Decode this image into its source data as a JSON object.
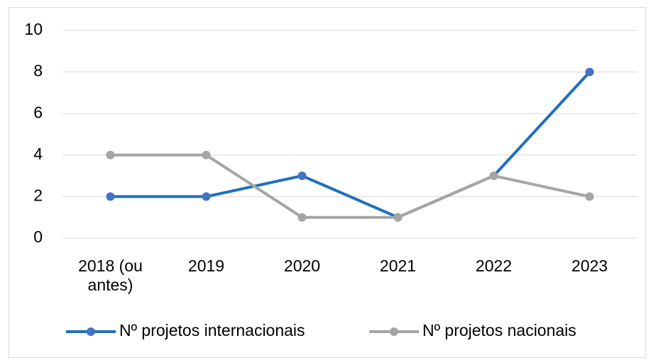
{
  "chart_data": {
    "type": "line",
    "categories": [
      "2018 (ou antes)",
      "2019",
      "2020",
      "2021",
      "2022",
      "2023"
    ],
    "series": [
      {
        "name": "Nº projetos internacionais",
        "color": "#1f6fc0",
        "values": [
          2,
          2,
          3,
          1,
          3,
          8
        ]
      },
      {
        "name": "Nº projetos nacionais",
        "color": "#a5a5a5",
        "values": [
          4,
          4,
          1,
          1,
          3,
          2
        ]
      }
    ],
    "ylim": [
      0,
      10
    ],
    "yticks": [
      0,
      2,
      4,
      6,
      8,
      10
    ],
    "grid": true,
    "legend": "bottom"
  }
}
